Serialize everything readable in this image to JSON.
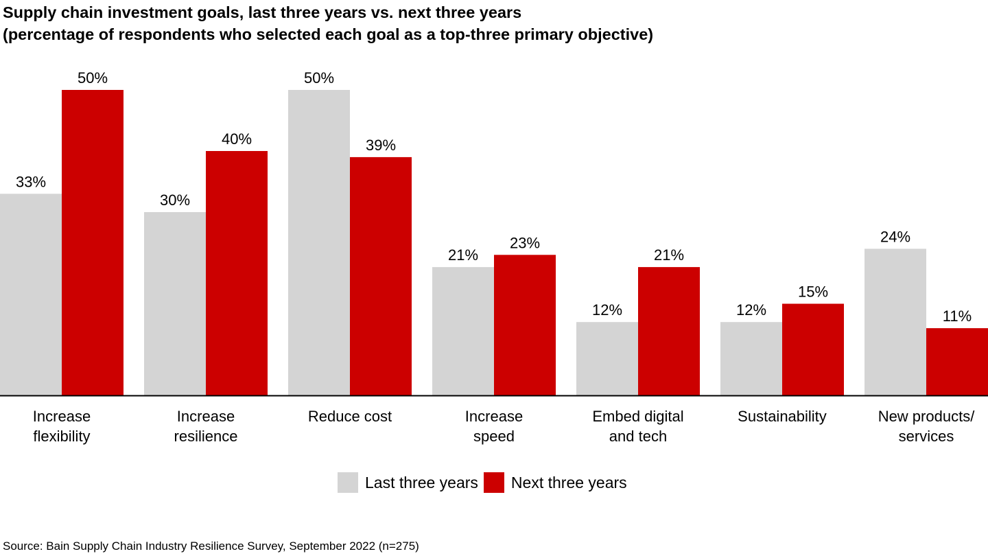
{
  "title_line1": "Supply chain investment goals, last three years vs. next three years",
  "title_line2": "(percentage of respondents who selected each goal as a top-three primary objective)",
  "source": "Source: Bain Supply Chain Industry Resilience Survey, September 2022 (n=275)",
  "colors": {
    "last": "#d4d4d4",
    "next": "#cc0000",
    "axis": "#000000"
  },
  "chart_data": {
    "type": "bar",
    "categories": [
      [
        "Increase",
        "flexibility"
      ],
      [
        "Increase",
        "resilience"
      ],
      [
        "Reduce cost"
      ],
      [
        "Increase",
        "speed"
      ],
      [
        "Embed digital",
        "and tech"
      ],
      [
        "Sustainability"
      ],
      [
        "New products/",
        "services"
      ]
    ],
    "series": [
      {
        "name": "Last three years",
        "values": [
          33,
          30,
          50,
          21,
          12,
          12,
          24
        ],
        "labels": [
          "33%",
          "30%",
          "50%",
          "21%",
          "12%",
          "12%",
          "24%"
        ]
      },
      {
        "name": "Next three years",
        "values": [
          50,
          40,
          39,
          23,
          21,
          15,
          11
        ],
        "labels": [
          "50%",
          "40%",
          "39%",
          "23%",
          "21%",
          "15%",
          "11%"
        ]
      }
    ],
    "ylim": [
      0,
      50
    ],
    "grid": false,
    "legend": "bottom-center"
  }
}
